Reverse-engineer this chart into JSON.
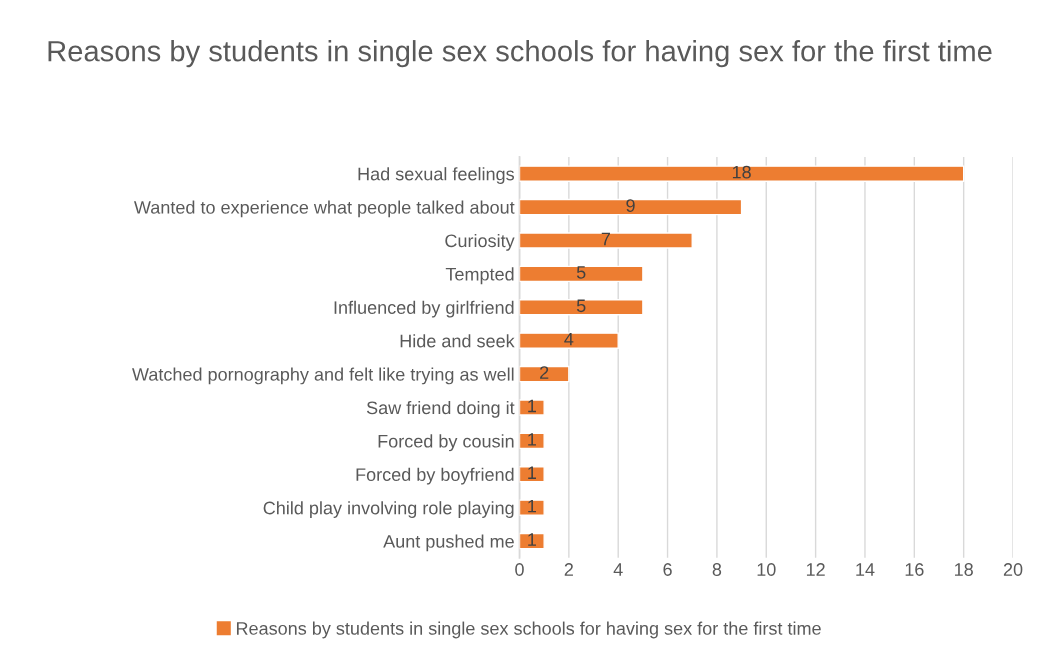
{
  "chart_data": {
    "type": "bar",
    "orientation": "horizontal",
    "title": "Reasons by students in single sex schools for having sex for the first time",
    "categories": [
      "Had sexual feelings",
      "Wanted to experience what people talked about",
      "Curiosity",
      "Tempted",
      "Influenced by girlfriend",
      "Hide and seek",
      "Watched pornography and felt like trying as well",
      "Saw friend doing it",
      "Forced by cousin",
      "Forced by boyfriend",
      "Child play involving role playing",
      "Aunt pushed me"
    ],
    "series": [
      {
        "name": "Reasons by students in single sex schools for having sex for the first time",
        "color": "#ed7d31",
        "values": [
          18,
          9,
          7,
          5,
          5,
          4,
          2,
          1,
          1,
          1,
          1,
          1
        ]
      }
    ],
    "xlim": [
      0,
      20
    ],
    "xticks": [
      0,
      2,
      4,
      6,
      8,
      10,
      12,
      14,
      16,
      18,
      20
    ],
    "grid": "x",
    "legend": "bottom",
    "data_labels": true
  }
}
